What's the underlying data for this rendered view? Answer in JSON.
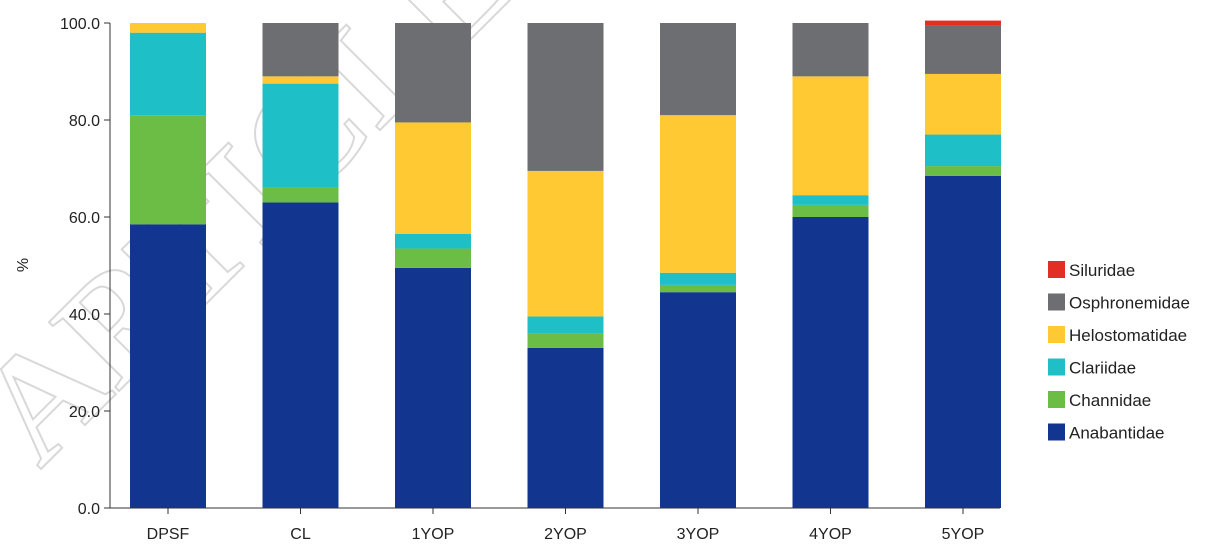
{
  "chart_data": {
    "type": "bar",
    "stacked": true,
    "categories": [
      "DPSF",
      "CL",
      "1YOP",
      "2YOP",
      "3YOP",
      "4YOP",
      "5YOP"
    ],
    "ylabel": "%",
    "ylim": [
      0,
      100
    ],
    "yticks": [
      "0.0",
      "20.0",
      "40.0",
      "60.0",
      "80.0",
      "100.0"
    ],
    "grid": false,
    "legend_position": "right",
    "series": [
      {
        "name": "Anabantidae",
        "color": "#12368f",
        "values": [
          58.5,
          63.0,
          49.5,
          33.0,
          44.5,
          60.0,
          68.5
        ]
      },
      {
        "name": "Channidae",
        "color": "#6cbd45",
        "values": [
          22.5,
          3.0,
          4.0,
          3.0,
          1.5,
          2.5,
          2.0
        ]
      },
      {
        "name": "Clariidae",
        "color": "#1fbfc7",
        "values": [
          17.0,
          21.5,
          3.0,
          3.5,
          2.5,
          2.0,
          6.5
        ]
      },
      {
        "name": "Helostomatidae",
        "color": "#ffc934",
        "values": [
          2.0,
          1.5,
          23.0,
          30.0,
          32.5,
          24.5,
          12.5
        ]
      },
      {
        "name": "Osphronemidae",
        "color": "#6d6e71",
        "values": [
          0.0,
          11.0,
          20.5,
          30.5,
          19.0,
          11.0,
          10.0
        ]
      },
      {
        "name": "Siluridae",
        "color": "#e32e24",
        "values": [
          0.0,
          0.0,
          0.0,
          0.0,
          0.0,
          0.0,
          1.0
        ]
      }
    ],
    "watermark": "ARTICLE"
  }
}
